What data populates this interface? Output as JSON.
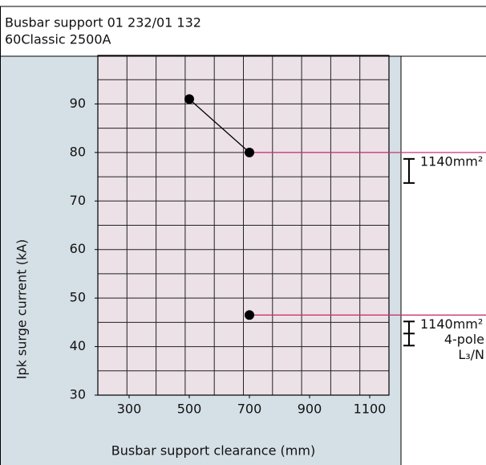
{
  "chart_data": {
    "type": "line",
    "title": "Busbar support 01 232/01 132",
    "subtitle": "60Classic 2500A",
    "x_label": "Busbar support clearance (mm)",
    "y_label": "Ipk surge current (kA)",
    "xlim": [
      196,
      1164
    ],
    "xticks": [
      300,
      500,
      700,
      900,
      1100
    ],
    "ylim": [
      30,
      100
    ],
    "yticks": [
      30,
      40,
      50,
      60,
      70,
      80,
      90
    ],
    "grid": true,
    "color": "#000000",
    "reference_color": "#cc3377",
    "series": [
      {
        "x": [
          500,
          700
        ],
        "values": [
          91,
          80
        ]
      },
      {
        "x": [
          700
        ],
        "values": [
          46.5
        ]
      }
    ],
    "annotations": [
      {
        "lines": [
          "1140mm²"
        ]
      },
      {
        "lines": [
          "1140mm²",
          "4-pole",
          "L₃/N"
        ]
      }
    ]
  }
}
